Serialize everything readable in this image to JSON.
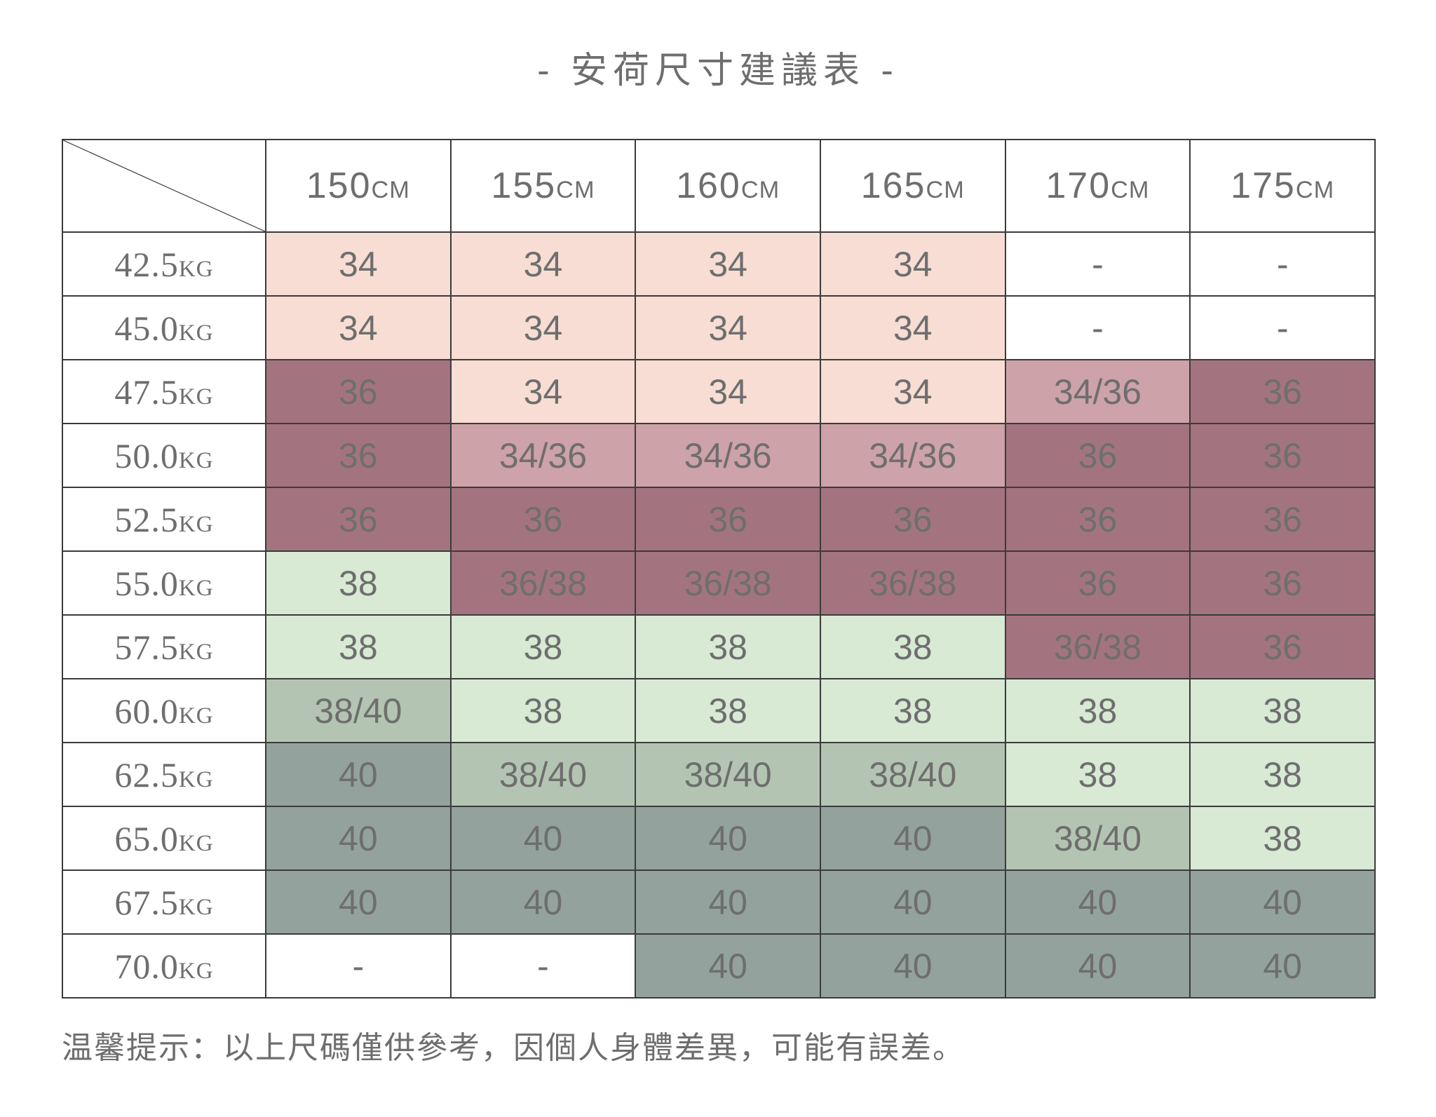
{
  "title": "- 安荷尺寸建議表 -",
  "footer_note": "温馨提示：以上尺碼僅供參考，因個人身體差異，可能有誤差。",
  "colors": {
    "pink": "#f7ddd3",
    "mauveMid": "#cda2a8",
    "mauveDark": "#a3747f",
    "greenLight": "#d8e9d4",
    "greenMid": "#b4c4b2",
    "greenDark": "#94a29e",
    "textDark": "#6e6e6e",
    "textLight": "#ffffff",
    "border": "#3b3b3b",
    "background": "#ffffff"
  },
  "table": {
    "weight_unit": "KG",
    "columns": [
      {
        "value": "150",
        "unit": "CM"
      },
      {
        "value": "155",
        "unit": "CM"
      },
      {
        "value": "160",
        "unit": "CM"
      },
      {
        "value": "165",
        "unit": "CM"
      },
      {
        "value": "170",
        "unit": "CM"
      },
      {
        "value": "175",
        "unit": "CM"
      }
    ],
    "rows": [
      {
        "weight": "42.5",
        "cells": [
          {
            "text": "34",
            "tone": "pink"
          },
          {
            "text": "34",
            "tone": "pink"
          },
          {
            "text": "34",
            "tone": "pink"
          },
          {
            "text": "34",
            "tone": "pink"
          },
          {
            "text": "-",
            "tone": "none"
          },
          {
            "text": "-",
            "tone": "none"
          }
        ]
      },
      {
        "weight": "45.0",
        "cells": [
          {
            "text": "34",
            "tone": "pink"
          },
          {
            "text": "34",
            "tone": "pink"
          },
          {
            "text": "34",
            "tone": "pink"
          },
          {
            "text": "34",
            "tone": "pink"
          },
          {
            "text": "-",
            "tone": "none"
          },
          {
            "text": "-",
            "tone": "none"
          }
        ]
      },
      {
        "weight": "47.5",
        "cells": [
          {
            "text": "36",
            "tone": "mauve-dark"
          },
          {
            "text": "34",
            "tone": "pink"
          },
          {
            "text": "34",
            "tone": "pink"
          },
          {
            "text": "34",
            "tone": "pink"
          },
          {
            "text": "34/36",
            "tone": "mauve-mid"
          },
          {
            "text": "36",
            "tone": "mauve-dark"
          }
        ]
      },
      {
        "weight": "50.0",
        "cells": [
          {
            "text": "36",
            "tone": "mauve-dark"
          },
          {
            "text": "34/36",
            "tone": "mauve-mid"
          },
          {
            "text": "34/36",
            "tone": "mauve-mid"
          },
          {
            "text": "34/36",
            "tone": "mauve-mid"
          },
          {
            "text": "36",
            "tone": "mauve-dark"
          },
          {
            "text": "36",
            "tone": "mauve-dark"
          }
        ]
      },
      {
        "weight": "52.5",
        "cells": [
          {
            "text": "36",
            "tone": "mauve-dark"
          },
          {
            "text": "36",
            "tone": "mauve-dark"
          },
          {
            "text": "36",
            "tone": "mauve-dark"
          },
          {
            "text": "36",
            "tone": "mauve-dark"
          },
          {
            "text": "36",
            "tone": "mauve-dark"
          },
          {
            "text": "36",
            "tone": "mauve-dark"
          }
        ]
      },
      {
        "weight": "55.0",
        "cells": [
          {
            "text": "38",
            "tone": "green-light"
          },
          {
            "text": "36/38",
            "tone": "mauve-dark"
          },
          {
            "text": "36/38",
            "tone": "mauve-dark"
          },
          {
            "text": "36/38",
            "tone": "mauve-dark"
          },
          {
            "text": "36",
            "tone": "mauve-dark"
          },
          {
            "text": "36",
            "tone": "mauve-dark"
          }
        ]
      },
      {
        "weight": "57.5",
        "cells": [
          {
            "text": "38",
            "tone": "green-light"
          },
          {
            "text": "38",
            "tone": "green-light"
          },
          {
            "text": "38",
            "tone": "green-light"
          },
          {
            "text": "38",
            "tone": "green-light"
          },
          {
            "text": "36/38",
            "tone": "mauve-dark"
          },
          {
            "text": "36",
            "tone": "mauve-dark"
          }
        ]
      },
      {
        "weight": "60.0",
        "cells": [
          {
            "text": "38/40",
            "tone": "green-mid"
          },
          {
            "text": "38",
            "tone": "green-light"
          },
          {
            "text": "38",
            "tone": "green-light"
          },
          {
            "text": "38",
            "tone": "green-light"
          },
          {
            "text": "38",
            "tone": "green-light"
          },
          {
            "text": "38",
            "tone": "green-light"
          }
        ]
      },
      {
        "weight": "62.5",
        "cells": [
          {
            "text": "40",
            "tone": "green-dark"
          },
          {
            "text": "38/40",
            "tone": "green-mid"
          },
          {
            "text": "38/40",
            "tone": "green-mid"
          },
          {
            "text": "38/40",
            "tone": "green-mid"
          },
          {
            "text": "38",
            "tone": "green-light"
          },
          {
            "text": "38",
            "tone": "green-light"
          }
        ]
      },
      {
        "weight": "65.0",
        "cells": [
          {
            "text": "40",
            "tone": "green-dark"
          },
          {
            "text": "40",
            "tone": "green-dark"
          },
          {
            "text": "40",
            "tone": "green-dark"
          },
          {
            "text": "40",
            "tone": "green-dark"
          },
          {
            "text": "38/40",
            "tone": "green-mid"
          },
          {
            "text": "38",
            "tone": "green-light"
          }
        ]
      },
      {
        "weight": "67.5",
        "cells": [
          {
            "text": "40",
            "tone": "green-dark"
          },
          {
            "text": "40",
            "tone": "green-dark"
          },
          {
            "text": "40",
            "tone": "green-dark"
          },
          {
            "text": "40",
            "tone": "green-dark"
          },
          {
            "text": "40",
            "tone": "green-dark"
          },
          {
            "text": "40",
            "tone": "green-dark"
          }
        ]
      },
      {
        "weight": "70.0",
        "cells": [
          {
            "text": "-",
            "tone": "none"
          },
          {
            "text": "-",
            "tone": "none"
          },
          {
            "text": "40",
            "tone": "green-dark"
          },
          {
            "text": "40",
            "tone": "green-dark"
          },
          {
            "text": "40",
            "tone": "green-dark"
          },
          {
            "text": "40",
            "tone": "green-dark"
          }
        ]
      }
    ]
  }
}
